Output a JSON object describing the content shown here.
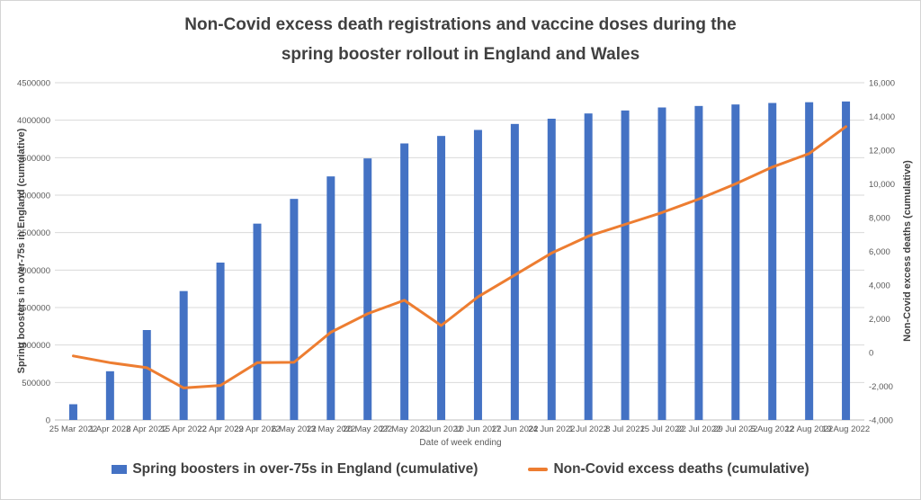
{
  "title": {
    "line1": "Non-Covid excess death registrations and vaccine doses during the",
    "line2": "spring booster rollout in England and Wales"
  },
  "chart_data": {
    "type": "bar",
    "subtype": "combo-bar-line-dual-axis",
    "title": "Non-Covid excess death registrations and vaccine doses during the spring booster rollout in England and Wales",
    "xlabel": "Date of week ending",
    "ylabel_left": "Spring boosters in over-75s in England (cumulative)",
    "ylabel_right": "Non-Covid excess deaths (cumulative)",
    "ylim_left": [
      0,
      4500000
    ],
    "ytick_step_left": 500000,
    "ylim_right": [
      -4000,
      16000
    ],
    "ytick_step_right": 2000,
    "grid": true,
    "legend_position": "bottom",
    "categories": [
      "25 Mar 2022",
      "1 Apr 2022",
      "8 Apr 2022",
      "15 Apr 2022",
      "22 Apr 2022",
      "29 Apr 2022",
      "6 May 2022",
      "13 May 2022",
      "20 May 2022",
      "27 May 2022",
      "3 Jun 2022",
      "10 Jun 2022",
      "17 Jun 2022",
      "24 Jun 2022",
      "1 Jul 2022",
      "8 Jul 2022",
      "15 Jul 2022",
      "22 Jul 2022",
      "29 Jul 2022",
      "5 Aug 2022",
      "12 Aug 2022",
      "19 Aug 2022"
    ],
    "series": [
      {
        "name": "Spring boosters in over-75s in England (cumulative)",
        "type": "bar",
        "axis": "left",
        "color": "#4472C4",
        "values": [
          210000,
          650000,
          1200000,
          1720000,
          2100000,
          2620000,
          2950000,
          3250000,
          3490000,
          3690000,
          3790000,
          3870000,
          3950000,
          4020000,
          4090000,
          4130000,
          4170000,
          4190000,
          4210000,
          4230000,
          4240000,
          4250000
        ]
      },
      {
        "name": "Non-Covid excess deaths (cumulative)",
        "type": "line",
        "axis": "right",
        "color": "#ED7D31",
        "values": [
          -200,
          -600,
          -900,
          -2100,
          -1950,
          -600,
          -580,
          1200,
          2300,
          3100,
          1600,
          3300,
          4600,
          5900,
          6900,
          7600,
          8300,
          9100,
          10000,
          11000,
          11800,
          13400
        ]
      }
    ]
  },
  "colors": {
    "bar": "#4472C4",
    "line": "#ED7D31",
    "grid": "#D9D9D9",
    "axis_line": "#BFBFBF",
    "tick_text": "#595959",
    "title_text": "#404040"
  }
}
